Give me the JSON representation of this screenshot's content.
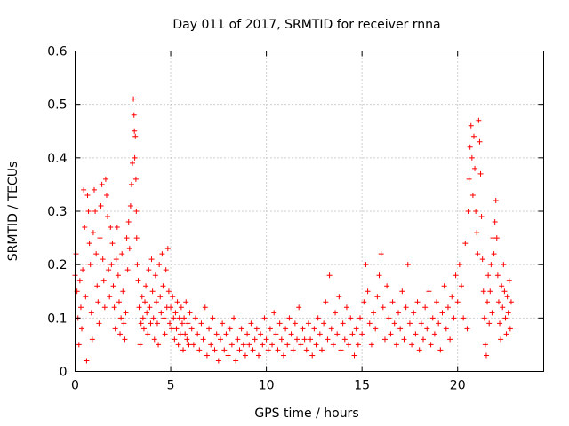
{
  "chart_data": {
    "type": "scatter",
    "title": "Day 011 of 2017, SRMTID for receiver rnna",
    "xlabel": "GPS time / hours",
    "ylabel": "SRMTID / TECUs",
    "xlim": [
      0,
      24.5
    ],
    "ylim": [
      0,
      0.6
    ],
    "x_ticks": [
      0,
      5,
      10,
      15,
      20
    ],
    "x_tick_labels": [
      "0",
      "5",
      "10",
      "15",
      "20"
    ],
    "y_ticks": [
      0,
      0.1,
      0.2,
      0.3,
      0.4,
      0.5,
      0.6
    ],
    "y_tick_labels": [
      "0",
      "0.1",
      "0.2",
      "0.3",
      "0.4",
      "0.5",
      "0.6"
    ],
    "grid": true,
    "marker": "+",
    "color": "#ff0000",
    "series": [
      {
        "name": "SRMTID",
        "points": [
          [
            0.0,
            0.18
          ],
          [
            0.05,
            0.22
          ],
          [
            0.1,
            0.15
          ],
          [
            0.15,
            0.1
          ],
          [
            0.2,
            0.05
          ],
          [
            0.25,
            0.17
          ],
          [
            0.3,
            0.12
          ],
          [
            0.35,
            0.08
          ],
          [
            0.4,
            0.19
          ],
          [
            0.45,
            0.34
          ],
          [
            0.5,
            0.27
          ],
          [
            0.55,
            0.14
          ],
          [
            0.6,
            0.02
          ],
          [
            0.65,
            0.33
          ],
          [
            0.7,
            0.3
          ],
          [
            0.75,
            0.24
          ],
          [
            0.8,
            0.2
          ],
          [
            0.85,
            0.11
          ],
          [
            0.9,
            0.06
          ],
          [
            0.95,
            0.26
          ],
          [
            1.0,
            0.34
          ],
          [
            1.05,
            0.3
          ],
          [
            1.1,
            0.22
          ],
          [
            1.15,
            0.16
          ],
          [
            1.2,
            0.13
          ],
          [
            1.25,
            0.09
          ],
          [
            1.3,
            0.25
          ],
          [
            1.35,
            0.31
          ],
          [
            1.4,
            0.35
          ],
          [
            1.45,
            0.21
          ],
          [
            1.5,
            0.17
          ],
          [
            1.55,
            0.12
          ],
          [
            1.6,
            0.36
          ],
          [
            1.65,
            0.33
          ],
          [
            1.7,
            0.29
          ],
          [
            1.75,
            0.19
          ],
          [
            1.8,
            0.14
          ],
          [
            1.85,
            0.27
          ],
          [
            1.9,
            0.2
          ],
          [
            1.95,
            0.24
          ],
          [
            2.0,
            0.16
          ],
          [
            2.05,
            0.12
          ],
          [
            2.1,
            0.08
          ],
          [
            2.15,
            0.21
          ],
          [
            2.2,
            0.27
          ],
          [
            2.25,
            0.18
          ],
          [
            2.3,
            0.13
          ],
          [
            2.35,
            0.07
          ],
          [
            2.4,
            0.1
          ],
          [
            2.45,
            0.22
          ],
          [
            2.5,
            0.15
          ],
          [
            2.55,
            0.09
          ],
          [
            2.6,
            0.06
          ],
          [
            2.65,
            0.11
          ],
          [
            2.7,
            0.25
          ],
          [
            2.75,
            0.19
          ],
          [
            2.8,
            0.28
          ],
          [
            2.85,
            0.23
          ],
          [
            2.9,
            0.31
          ],
          [
            2.95,
            0.35
          ],
          [
            3.0,
            0.39
          ],
          [
            3.05,
            0.51
          ],
          [
            3.08,
            0.48
          ],
          [
            3.1,
            0.45
          ],
          [
            3.12,
            0.4
          ],
          [
            3.15,
            0.44
          ],
          [
            3.18,
            0.36
          ],
          [
            3.2,
            0.3
          ],
          [
            3.22,
            0.25
          ],
          [
            3.25,
            0.2
          ],
          [
            3.3,
            0.17
          ],
          [
            3.35,
            0.12
          ],
          [
            3.4,
            0.05
          ],
          [
            3.45,
            0.09
          ],
          [
            3.5,
            0.14
          ],
          [
            3.55,
            0.1
          ],
          [
            3.6,
            0.08
          ],
          [
            3.65,
            0.13
          ],
          [
            3.7,
            0.16
          ],
          [
            3.75,
            0.11
          ],
          [
            3.8,
            0.07
          ],
          [
            3.85,
            0.19
          ],
          [
            3.9,
            0.12
          ],
          [
            3.95,
            0.09
          ],
          [
            4.0,
            0.21
          ],
          [
            4.05,
            0.15
          ],
          [
            4.1,
            0.1
          ],
          [
            4.15,
            0.06
          ],
          [
            4.2,
            0.18
          ],
          [
            4.25,
            0.13
          ],
          [
            4.3,
            0.09
          ],
          [
            4.35,
            0.05
          ],
          [
            4.4,
            0.2
          ],
          [
            4.45,
            0.14
          ],
          [
            4.5,
            0.11
          ],
          [
            4.55,
            0.22
          ],
          [
            4.6,
            0.16
          ],
          [
            4.65,
            0.1
          ],
          [
            4.7,
            0.07
          ],
          [
            4.75,
            0.19
          ],
          [
            4.8,
            0.12
          ],
          [
            4.85,
            0.23
          ],
          [
            4.9,
            0.15
          ],
          [
            4.95,
            0.09
          ],
          [
            5.0,
            0.12
          ],
          [
            5.05,
            0.08
          ],
          [
            5.1,
            0.14
          ],
          [
            5.15,
            0.1
          ],
          [
            5.2,
            0.06
          ],
          [
            5.25,
            0.11
          ],
          [
            5.3,
            0.08
          ],
          [
            5.35,
            0.13
          ],
          [
            5.4,
            0.05
          ],
          [
            5.45,
            0.1
          ],
          [
            5.5,
            0.07
          ],
          [
            5.55,
            0.12
          ],
          [
            5.6,
            0.09
          ],
          [
            5.65,
            0.04
          ],
          [
            5.7,
            0.1
          ],
          [
            5.75,
            0.07
          ],
          [
            5.8,
            0.13
          ],
          [
            5.85,
            0.06
          ],
          [
            5.9,
            0.09
          ],
          [
            5.95,
            0.05
          ],
          [
            6.0,
            0.11
          ],
          [
            6.1,
            0.08
          ],
          [
            6.2,
            0.05
          ],
          [
            6.3,
            0.1
          ],
          [
            6.4,
            0.07
          ],
          [
            6.5,
            0.04
          ],
          [
            6.6,
            0.09
          ],
          [
            6.7,
            0.06
          ],
          [
            6.8,
            0.12
          ],
          [
            6.9,
            0.03
          ],
          [
            7.0,
            0.08
          ],
          [
            7.1,
            0.05
          ],
          [
            7.2,
            0.1
          ],
          [
            7.3,
            0.04
          ],
          [
            7.4,
            0.07
          ],
          [
            7.5,
            0.02
          ],
          [
            7.6,
            0.06
          ],
          [
            7.7,
            0.09
          ],
          [
            7.8,
            0.04
          ],
          [
            7.9,
            0.07
          ],
          [
            8.0,
            0.03
          ],
          [
            8.1,
            0.08
          ],
          [
            8.2,
            0.05
          ],
          [
            8.3,
            0.1
          ],
          [
            8.4,
            0.02
          ],
          [
            8.5,
            0.06
          ],
          [
            8.6,
            0.04
          ],
          [
            8.7,
            0.08
          ],
          [
            8.8,
            0.05
          ],
          [
            8.9,
            0.03
          ],
          [
            9.0,
            0.07
          ],
          [
            9.1,
            0.05
          ],
          [
            9.2,
            0.09
          ],
          [
            9.3,
            0.04
          ],
          [
            9.4,
            0.06
          ],
          [
            9.5,
            0.08
          ],
          [
            9.6,
            0.03
          ],
          [
            9.7,
            0.07
          ],
          [
            9.8,
            0.05
          ],
          [
            9.9,
            0.1
          ],
          [
            10.0,
            0.06
          ],
          [
            10.1,
            0.04
          ],
          [
            10.2,
            0.08
          ],
          [
            10.3,
            0.05
          ],
          [
            10.4,
            0.11
          ],
          [
            10.5,
            0.07
          ],
          [
            10.6,
            0.04
          ],
          [
            10.7,
            0.09
          ],
          [
            10.8,
            0.06
          ],
          [
            10.9,
            0.03
          ],
          [
            11.0,
            0.08
          ],
          [
            11.1,
            0.05
          ],
          [
            11.2,
            0.1
          ],
          [
            11.3,
            0.07
          ],
          [
            11.4,
            0.04
          ],
          [
            11.5,
            0.09
          ],
          [
            11.6,
            0.06
          ],
          [
            11.7,
            0.12
          ],
          [
            11.8,
            0.05
          ],
          [
            11.9,
            0.08
          ],
          [
            12.0,
            0.06
          ],
          [
            12.1,
            0.04
          ],
          [
            12.2,
            0.09
          ],
          [
            12.3,
            0.06
          ],
          [
            12.4,
            0.03
          ],
          [
            12.5,
            0.08
          ],
          [
            12.6,
            0.05
          ],
          [
            12.7,
            0.1
          ],
          [
            12.8,
            0.07
          ],
          [
            12.9,
            0.04
          ],
          [
            13.0,
            0.09
          ],
          [
            13.1,
            0.13
          ],
          [
            13.2,
            0.06
          ],
          [
            13.3,
            0.18
          ],
          [
            13.4,
            0.08
          ],
          [
            13.5,
            0.05
          ],
          [
            13.6,
            0.11
          ],
          [
            13.7,
            0.07
          ],
          [
            13.8,
            0.14
          ],
          [
            13.9,
            0.04
          ],
          [
            14.0,
            0.09
          ],
          [
            14.1,
            0.06
          ],
          [
            14.2,
            0.12
          ],
          [
            14.3,
            0.05
          ],
          [
            14.4,
            0.1
          ],
          [
            14.5,
            0.07
          ],
          [
            14.6,
            0.03
          ],
          [
            14.7,
            0.08
          ],
          [
            14.8,
            0.05
          ],
          [
            14.9,
            0.1
          ],
          [
            15.0,
            0.07
          ],
          [
            15.1,
            0.13
          ],
          [
            15.2,
            0.2
          ],
          [
            15.3,
            0.15
          ],
          [
            15.4,
            0.09
          ],
          [
            15.5,
            0.05
          ],
          [
            15.6,
            0.11
          ],
          [
            15.7,
            0.08
          ],
          [
            15.8,
            0.14
          ],
          [
            15.9,
            0.18
          ],
          [
            16.0,
            0.22
          ],
          [
            16.1,
            0.12
          ],
          [
            16.2,
            0.06
          ],
          [
            16.3,
            0.16
          ],
          [
            16.4,
            0.1
          ],
          [
            16.5,
            0.07
          ],
          [
            16.6,
            0.13
          ],
          [
            16.7,
            0.09
          ],
          [
            16.8,
            0.05
          ],
          [
            16.9,
            0.11
          ],
          [
            17.0,
            0.08
          ],
          [
            17.1,
            0.15
          ],
          [
            17.2,
            0.06
          ],
          [
            17.3,
            0.12
          ],
          [
            17.4,
            0.2
          ],
          [
            17.5,
            0.09
          ],
          [
            17.6,
            0.05
          ],
          [
            17.7,
            0.11
          ],
          [
            17.8,
            0.07
          ],
          [
            17.9,
            0.13
          ],
          [
            18.0,
            0.04
          ],
          [
            18.1,
            0.09
          ],
          [
            18.2,
            0.06
          ],
          [
            18.3,
            0.12
          ],
          [
            18.4,
            0.08
          ],
          [
            18.5,
            0.15
          ],
          [
            18.6,
            0.05
          ],
          [
            18.7,
            0.1
          ],
          [
            18.8,
            0.07
          ],
          [
            18.9,
            0.13
          ],
          [
            19.0,
            0.09
          ],
          [
            19.1,
            0.04
          ],
          [
            19.2,
            0.11
          ],
          [
            19.3,
            0.16
          ],
          [
            19.4,
            0.08
          ],
          [
            19.5,
            0.12
          ],
          [
            19.6,
            0.06
          ],
          [
            19.7,
            0.14
          ],
          [
            19.8,
            0.1
          ],
          [
            19.9,
            0.18
          ],
          [
            20.0,
            0.13
          ],
          [
            20.1,
            0.2
          ],
          [
            20.2,
            0.16
          ],
          [
            20.3,
            0.1
          ],
          [
            20.4,
            0.24
          ],
          [
            20.5,
            0.08
          ],
          [
            20.55,
            0.3
          ],
          [
            20.6,
            0.36
          ],
          [
            20.65,
            0.42
          ],
          [
            20.7,
            0.46
          ],
          [
            20.75,
            0.4
          ],
          [
            20.8,
            0.33
          ],
          [
            20.85,
            0.44
          ],
          [
            20.9,
            0.38
          ],
          [
            20.95,
            0.3
          ],
          [
            21.0,
            0.26
          ],
          [
            21.05,
            0.22
          ],
          [
            21.1,
            0.47
          ],
          [
            21.15,
            0.43
          ],
          [
            21.2,
            0.37
          ],
          [
            21.25,
            0.29
          ],
          [
            21.3,
            0.21
          ],
          [
            21.35,
            0.15
          ],
          [
            21.4,
            0.1
          ],
          [
            21.45,
            0.05
          ],
          [
            21.5,
            0.03
          ],
          [
            21.55,
            0.13
          ],
          [
            21.6,
            0.18
          ],
          [
            21.65,
            0.09
          ],
          [
            21.7,
            0.15
          ],
          [
            21.75,
            0.2
          ],
          [
            21.8,
            0.11
          ],
          [
            21.85,
            0.25
          ],
          [
            21.9,
            0.22
          ],
          [
            21.95,
            0.28
          ],
          [
            22.0,
            0.32
          ],
          [
            22.05,
            0.25
          ],
          [
            22.1,
            0.18
          ],
          [
            22.15,
            0.13
          ],
          [
            22.2,
            0.09
          ],
          [
            22.25,
            0.06
          ],
          [
            22.3,
            0.16
          ],
          [
            22.35,
            0.12
          ],
          [
            22.4,
            0.2
          ],
          [
            22.45,
            0.15
          ],
          [
            22.5,
            0.1
          ],
          [
            22.55,
            0.07
          ],
          [
            22.6,
            0.14
          ],
          [
            22.65,
            0.11
          ],
          [
            22.7,
            0.17
          ],
          [
            22.75,
            0.08
          ],
          [
            22.8,
            0.13
          ]
        ]
      }
    ]
  }
}
